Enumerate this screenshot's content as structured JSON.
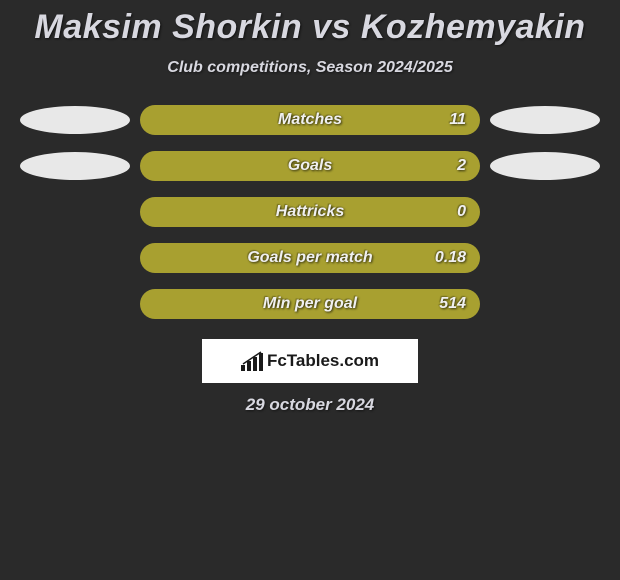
{
  "background_color": "#2a2a2a",
  "title": "Maksim Shorkin vs Kozhemyakin",
  "title_color": "#d8d8e0",
  "title_fontsize": 34,
  "subtitle": "Club competitions, Season 2024/2025",
  "subtitle_color": "#d8d8e0",
  "subtitle_fontsize": 16,
  "ellipse_left_color": "#e8e8e8",
  "ellipse_right_color": "#e8e8e8",
  "bar_color": "#a8a030",
  "bar_text_color": "#f0f0f0",
  "bar_fontsize": 16,
  "rows": [
    {
      "label": "Matches",
      "value": "11",
      "left_ellipse": true,
      "right_ellipse": true
    },
    {
      "label": "Goals",
      "value": "2",
      "left_ellipse": true,
      "right_ellipse": true
    },
    {
      "label": "Hattricks",
      "value": "0",
      "left_ellipse": false,
      "right_ellipse": false
    },
    {
      "label": "Goals per match",
      "value": "0.18",
      "left_ellipse": false,
      "right_ellipse": false
    },
    {
      "label": "Min per goal",
      "value": "514",
      "left_ellipse": false,
      "right_ellipse": false
    }
  ],
  "logo": {
    "text": "FcTables.com",
    "bg_color": "#ffffff",
    "text_color": "#1a1a1a",
    "icon_color": "#1a1a1a"
  },
  "date": "29 october 2024",
  "date_color": "#d8d8e0",
  "date_fontsize": 17
}
